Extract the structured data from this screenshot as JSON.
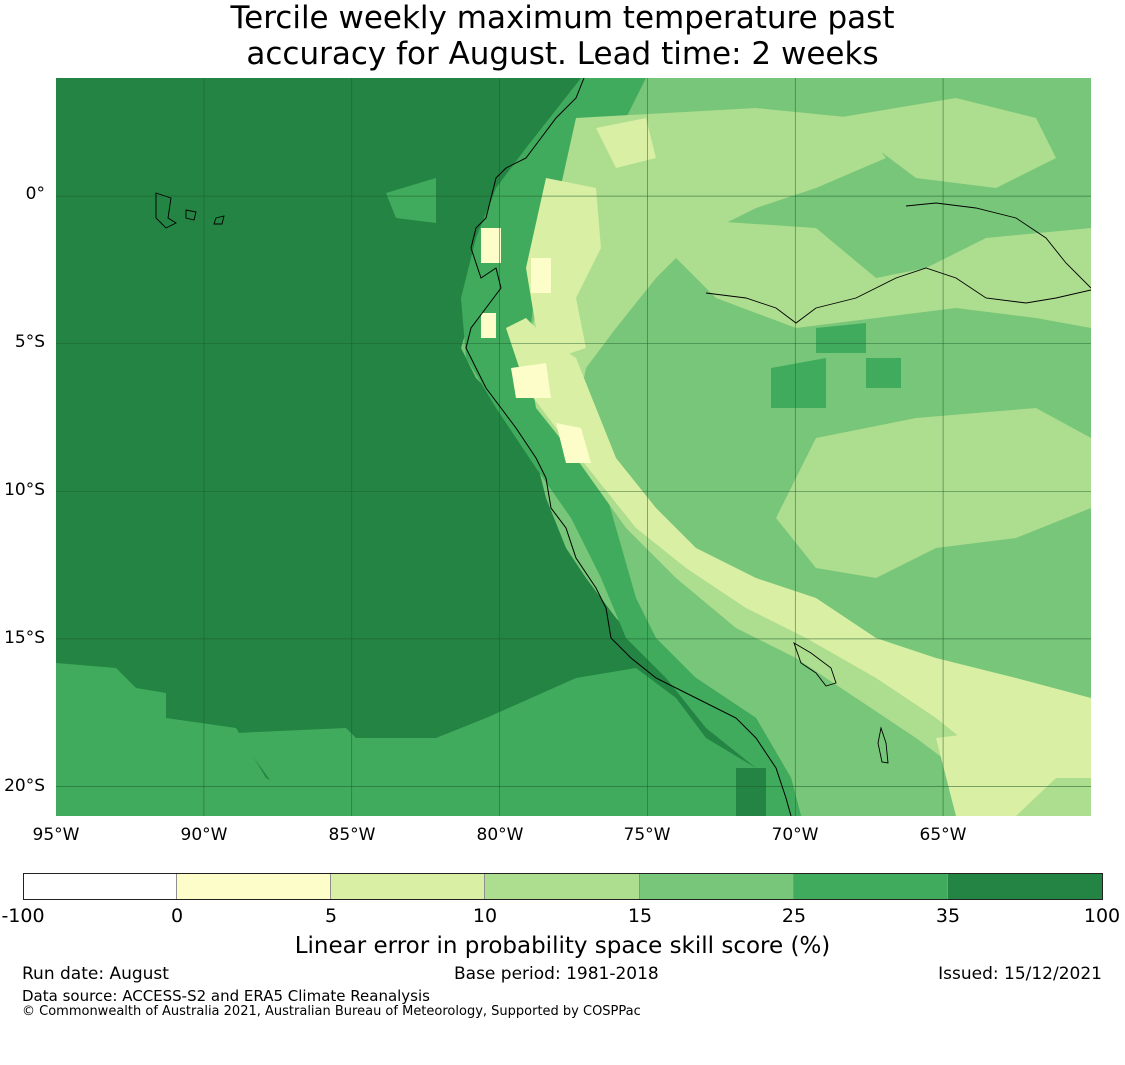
{
  "title_line1": "Tercile weekly maximum temperature past",
  "title_line2": "accuracy for August. Lead time: 2 weeks",
  "lat_ticks": [
    "0°",
    "5°S",
    "10°S",
    "15°S",
    "20°S"
  ],
  "lon_ticks": [
    "95°W",
    "90°W",
    "85°W",
    "80°W",
    "75°W",
    "70°W",
    "65°W"
  ],
  "map_extent": {
    "lon_min": -95,
    "lon_max": -60,
    "lat_min": -21,
    "lat_max": 4
  },
  "colorbar": {
    "title": "Linear error in probability space skill score (%)",
    "boundaries": [
      "-100",
      "0",
      "5",
      "10",
      "15",
      "25",
      "35",
      "100"
    ],
    "colors": [
      "#ffffff",
      "#fdfdc9",
      "#d9efa3",
      "#addd8e",
      "#78c679",
      "#41ab5d",
      "#238443"
    ]
  },
  "footer": {
    "run_date": "Run date: August",
    "base_period": "Base period: 1981-2018",
    "issued": "Issued: 15/12/2021",
    "data_source": "Data source: ACCESS-S2 and ERA5 Climate Reanalysis",
    "copyright": "© Commonwealth of Australia 2021, Australian Bureau of Meteorology, Supported by COSPPac"
  }
}
